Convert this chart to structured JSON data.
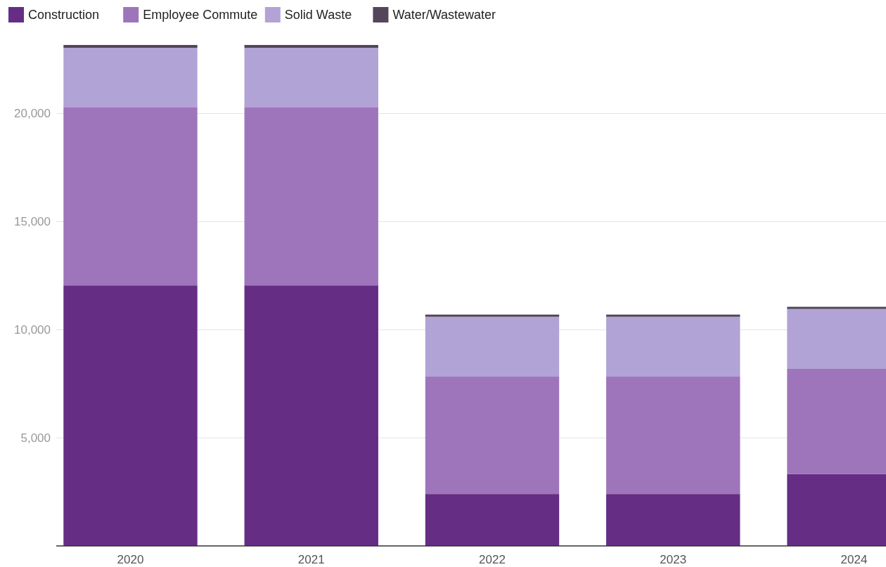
{
  "chart_data": {
    "type": "bar",
    "stacked": true,
    "categories": [
      "2020",
      "2021",
      "2022",
      "2023",
      "2024"
    ],
    "series": [
      {
        "name": "Construction",
        "color": "#652d84",
        "values": [
          12050,
          12050,
          2400,
          2400,
          3330
        ]
      },
      {
        "name": "Employee Commute",
        "color": "#9e75bb",
        "values": [
          8250,
          8250,
          5430,
          5430,
          4860
        ]
      },
      {
        "name": "Solid Waste",
        "color": "#b1a3d6",
        "values": [
          2740,
          2740,
          2770,
          2770,
          2770
        ]
      },
      {
        "name": "Water/Wastewater",
        "color": "#54465a",
        "values": [
          130,
          130,
          100,
          100,
          100
        ]
      }
    ],
    "ylim": [
      0,
      23300
    ],
    "yticks": [
      {
        "value": 5000,
        "label": "5,000"
      },
      {
        "value": 10000,
        "label": "10,000"
      },
      {
        "value": 15000,
        "label": "15,000"
      },
      {
        "value": 20000,
        "label": "20,000"
      }
    ],
    "grid": "y",
    "legend": "top left"
  }
}
